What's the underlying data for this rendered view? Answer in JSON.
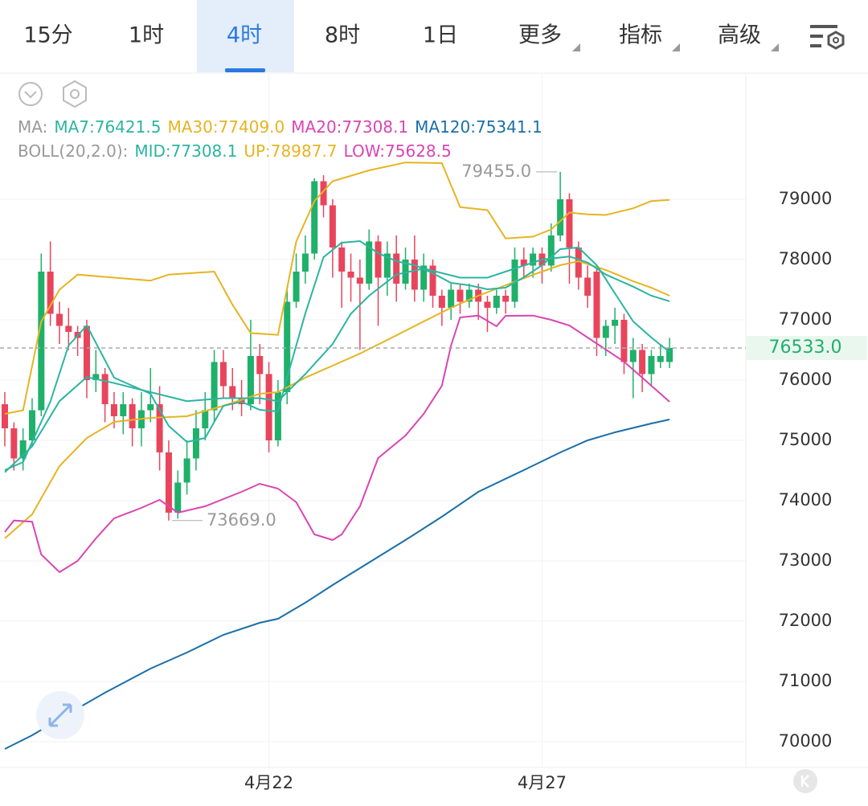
{
  "tabs": [
    "15分",
    "1时",
    "4时",
    "8时",
    "1日",
    "更多",
    "指标",
    "高级"
  ],
  "chart_data": {
    "type": "candlestick",
    "legend_ma_label": "MA:",
    "legend_ma": [
      {
        "label": "MA7:76421.5",
        "color": "#2bb5a0"
      },
      {
        "label": "MA30:77409.0",
        "color": "#e6b422"
      },
      {
        "label": "MA20:77308.1",
        "color": "#d946b2"
      },
      {
        "label": "MA120:75341.1",
        "color": "#1a6fa8"
      }
    ],
    "legend_boll_label": "BOLL(20,2.0):",
    "legend_boll": [
      {
        "label": "MID:77308.1",
        "color": "#2bb5a0"
      },
      {
        "label": "UP:78987.7",
        "color": "#e6b422"
      },
      {
        "label": "LOW:75628.5",
        "color": "#d946b2"
      }
    ],
    "categories": [
      null,
      null,
      null,
      null,
      null,
      null,
      null,
      null,
      null,
      null,
      null,
      null,
      null,
      null,
      null,
      null,
      null,
      null,
      null,
      null,
      null,
      null,
      null,
      null,
      null,
      null,
      null,
      null,
      null,
      "4月22",
      null,
      null,
      null,
      null,
      null,
      null,
      null,
      null,
      null,
      null,
      null,
      null,
      null,
      null,
      null,
      null,
      null,
      null,
      null,
      null,
      null,
      null,
      null,
      null,
      null,
      null,
      null,
      null,
      null,
      "4月27",
      null,
      null,
      null,
      null,
      null,
      null,
      null,
      null,
      null,
      null,
      null,
      null,
      null,
      null
    ],
    "open": [
      75600,
      75200,
      74700,
      75000,
      75500,
      77800,
      77100,
      76900,
      76800,
      76900,
      76000,
      76100,
      75600,
      75400,
      75600,
      75200,
      75500,
      75600,
      74800,
      73800,
      74300,
      74700,
      75200,
      75500,
      76300,
      75900,
      75700,
      75600,
      76400,
      76100,
      75000,
      75800,
      77300,
      77800,
      78100,
      79300,
      78900,
      78200,
      77800,
      77700,
      77600,
      78300,
      77700,
      78100,
      77600,
      78000,
      77500,
      77900,
      77400,
      77200,
      77500,
      77300,
      77500,
      77300,
      77200,
      77400,
      77300,
      78000,
      77900,
      78100,
      77900,
      78400,
      79000,
      78200,
      77700,
      77800,
      76700,
      76900,
      77000,
      76300,
      76500,
      76100,
      76300,
      76300
    ],
    "close": [
      75200,
      74700,
      75000,
      75500,
      77800,
      77100,
      76900,
      76800,
      76700,
      76000,
      76100,
      75600,
      75400,
      75600,
      75200,
      75500,
      75600,
      74800,
      73800,
      74300,
      74700,
      75200,
      75500,
      76300,
      75900,
      75700,
      75600,
      76400,
      76100,
      75000,
      75800,
      77300,
      77800,
      78100,
      79300,
      78900,
      78200,
      77800,
      77700,
      77600,
      78300,
      77700,
      78100,
      77600,
      78000,
      77500,
      77900,
      77400,
      77200,
      77500,
      77300,
      77500,
      77300,
      77200,
      77400,
      77300,
      78000,
      77900,
      78100,
      77900,
      78400,
      79000,
      78200,
      77700,
      77400,
      76700,
      76900,
      77000,
      76300,
      76500,
      76100,
      76400,
      76400,
      76533
    ],
    "high": [
      75800,
      75300,
      75200,
      75700,
      78100,
      78300,
      77300,
      77200,
      76900,
      77000,
      76500,
      76200,
      75800,
      75800,
      75700,
      75800,
      76200,
      75900,
      75000,
      74500,
      75000,
      75500,
      75800,
      76500,
      76500,
      76200,
      76000,
      77000,
      76600,
      76300,
      76000,
      77500,
      78100,
      78400,
      79350,
      79400,
      79000,
      78300,
      78100,
      78000,
      78500,
      78400,
      78300,
      78400,
      78200,
      78400,
      78100,
      78000,
      77500,
      77600,
      77600,
      77600,
      77600,
      77400,
      77500,
      77500,
      78200,
      78200,
      78200,
      78200,
      78600,
      79455,
      79100,
      78300,
      77900,
      77900,
      77000,
      77200,
      77100,
      76700,
      76600,
      76500,
      76600,
      76700
    ],
    "low": [
      74900,
      74500,
      74500,
      74900,
      75400,
      76900,
      76600,
      76500,
      76400,
      75700,
      75800,
      75300,
      75200,
      75100,
      74900,
      74900,
      75300,
      74500,
      73669,
      73700,
      74100,
      74500,
      75000,
      75300,
      75700,
      75500,
      75400,
      75500,
      75600,
      74800,
      74900,
      75600,
      77200,
      77600,
      78000,
      78700,
      77700,
      77200,
      77300,
      76500,
      77500,
      76900,
      77400,
      77300,
      77500,
      77300,
      77300,
      77200,
      76900,
      77000,
      77100,
      77200,
      77000,
      76800,
      77100,
      77100,
      77200,
      77700,
      77700,
      77600,
      77800,
      78300,
      77600,
      77500,
      77200,
      76400,
      76400,
      76600,
      76100,
      75700,
      75800,
      75900,
      76200,
      76200
    ],
    "up_color": "#1fb06a",
    "down_color": "#e8455c",
    "lines": [
      {
        "color": "#1a6fa8",
        "x": [
          0,
          3,
          7,
          11,
          16,
          20,
          24,
          28,
          30,
          33,
          36,
          40,
          44,
          48,
          52,
          57,
          61,
          64,
          67,
          71,
          73
        ],
        "values": [
          69880,
          70107,
          70467,
          70813,
          71213,
          71480,
          71773,
          71973,
          72040,
          72307,
          72600,
          72973,
          73347,
          73733,
          74147,
          74507,
          74800,
          75000,
          75133,
          75280,
          75347
        ]
      },
      {
        "color": "#e6b422",
        "x": [
          0,
          3,
          6,
          9,
          12,
          16,
          20,
          24,
          28,
          30,
          33,
          36,
          39,
          42,
          46,
          49,
          52,
          55,
          58,
          61,
          63,
          66,
          69,
          71,
          73
        ],
        "values": [
          73373,
          73773,
          74573,
          75040,
          75307,
          75373,
          75400,
          75573,
          75773,
          75800,
          76040,
          76240,
          76440,
          76667,
          76973,
          77200,
          77400,
          77573,
          77747,
          77907,
          77973,
          77827,
          77640,
          77533,
          77400
        ]
      },
      {
        "color": "#e6b422",
        "x": [
          0,
          2,
          4,
          6,
          8,
          12,
          16,
          18,
          23,
          25,
          27,
          30,
          32,
          34,
          36,
          40,
          44,
          48,
          50,
          53,
          55,
          58,
          60,
          62,
          64,
          66,
          69,
          71,
          73
        ],
        "values": [
          75440,
          75500,
          76970,
          77500,
          77750,
          77700,
          77650,
          77750,
          77800,
          77250,
          76780,
          76750,
          78300,
          78970,
          79300,
          79480,
          79610,
          79600,
          78870,
          78820,
          78350,
          78380,
          78500,
          78780,
          78750,
          78740,
          78850,
          78970,
          78990
        ]
      },
      {
        "color": "#d946b2",
        "x": [
          0,
          1,
          3,
          4,
          6,
          8,
          10,
          12,
          15,
          17,
          19,
          22,
          26,
          28,
          30,
          32,
          34,
          36,
          37,
          39,
          41,
          44,
          46,
          48,
          49,
          50,
          52,
          54,
          55,
          58,
          60,
          62,
          64,
          66,
          68,
          70,
          72,
          73
        ],
        "values": [
          73480,
          73670,
          73650,
          73107,
          72813,
          73000,
          73373,
          73707,
          73880,
          74013,
          73800,
          73907,
          74147,
          74280,
          74200,
          73973,
          73440,
          73347,
          73440,
          73907,
          74707,
          75080,
          75440,
          75907,
          76573,
          77040,
          77070,
          76893,
          77067,
          77070,
          77000,
          76907,
          76707,
          76507,
          76307,
          76040,
          75773,
          75640
        ]
      },
      {
        "color": "#2bb5a0",
        "x": [
          0,
          3,
          6,
          9,
          12,
          16,
          20,
          24,
          28,
          30,
          33,
          36,
          38,
          40,
          43,
          46,
          50,
          53,
          56,
          59,
          62,
          64,
          66,
          69,
          71,
          73
        ],
        "values": [
          74470,
          74900,
          75650,
          76050,
          75950,
          75800,
          75650,
          75700,
          75700,
          75650,
          76100,
          76600,
          77100,
          77400,
          77750,
          77850,
          77700,
          77700,
          77850,
          78000,
          78050,
          77950,
          77750,
          77550,
          77400,
          77308
        ]
      },
      {
        "color": "#2bb5a0",
        "x": [
          0,
          2,
          5,
          7,
          9,
          12,
          14,
          16,
          18,
          20,
          22,
          24,
          26,
          28,
          30,
          31,
          33,
          35,
          37,
          39,
          41,
          43,
          45,
          47,
          49,
          51,
          53,
          55,
          57,
          59,
          61,
          63,
          65,
          67,
          69,
          71,
          73
        ],
        "values": [
          74507,
          74640,
          75640,
          76573,
          76907,
          76040,
          75907,
          75773,
          75240,
          74973,
          75040,
          75573,
          75640,
          75507,
          75480,
          76040,
          77107,
          78040,
          78280,
          78307,
          78107,
          77973,
          77907,
          77773,
          77613,
          77573,
          77507,
          77533,
          77707,
          77907,
          78173,
          78200,
          77907,
          77440,
          76973,
          76707,
          76467
        ]
      }
    ],
    "high_mark": {
      "x": 61,
      "value": 79455,
      "label": "79455.0"
    },
    "low_mark": {
      "x": 18,
      "value": 73669,
      "label": "73669.0"
    },
    "last_price": {
      "value": 76533,
      "label": "76533.0"
    },
    "ylim": [
      69573,
      81080
    ],
    "yticks": [
      70000,
      71000,
      72000,
      73000,
      74000,
      75000,
      76000,
      77000,
      78000,
      79000
    ],
    "grid": true
  }
}
